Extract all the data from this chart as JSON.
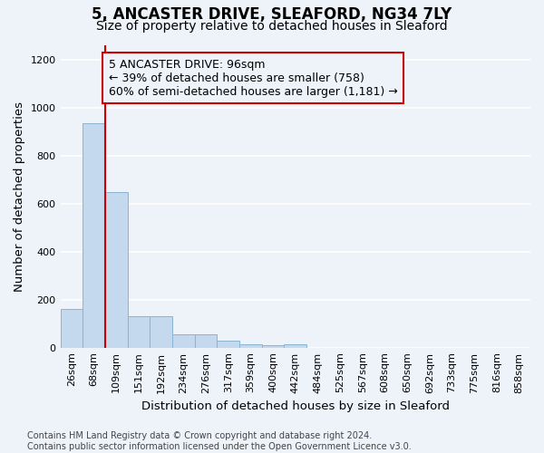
{
  "title": "5, ANCASTER DRIVE, SLEAFORD, NG34 7LY",
  "subtitle": "Size of property relative to detached houses in Sleaford",
  "xlabel": "Distribution of detached houses by size in Sleaford",
  "ylabel": "Number of detached properties",
  "footer_line1": "Contains HM Land Registry data © Crown copyright and database right 2024.",
  "footer_line2": "Contains public sector information licensed under the Open Government Licence v3.0.",
  "bin_labels": [
    "26sqm",
    "68sqm",
    "109sqm",
    "151sqm",
    "192sqm",
    "234sqm",
    "276sqm",
    "317sqm",
    "359sqm",
    "400sqm",
    "442sqm",
    "484sqm",
    "525sqm",
    "567sqm",
    "608sqm",
    "650sqm",
    "692sqm",
    "733sqm",
    "775sqm",
    "816sqm",
    "858sqm"
  ],
  "bar_values": [
    160,
    935,
    650,
    130,
    130,
    55,
    55,
    30,
    15,
    10,
    15,
    0,
    0,
    0,
    0,
    0,
    0,
    0,
    0,
    0,
    0
  ],
  "bar_color": "#c5d9ee",
  "bar_edge_color": "#8ab4d4",
  "background_color": "#eef2f9",
  "grid_color": "#ffffff",
  "ylim": [
    0,
    1260
  ],
  "yticks": [
    0,
    200,
    400,
    600,
    800,
    1000,
    1200
  ],
  "property_bin_index": 1,
  "property_line_color": "#cc0000",
  "annotation_line1": "5 ANCASTER DRIVE: 96sqm",
  "annotation_line2": "← 39% of detached houses are smaller (758)",
  "annotation_line3": "60% of semi-detached houses are larger (1,181) →",
  "annotation_box_color": "#cc0000",
  "title_fontsize": 12,
  "subtitle_fontsize": 10,
  "axis_label_fontsize": 9.5,
  "tick_fontsize": 8,
  "annotation_fontsize": 9,
  "footer_fontsize": 7
}
